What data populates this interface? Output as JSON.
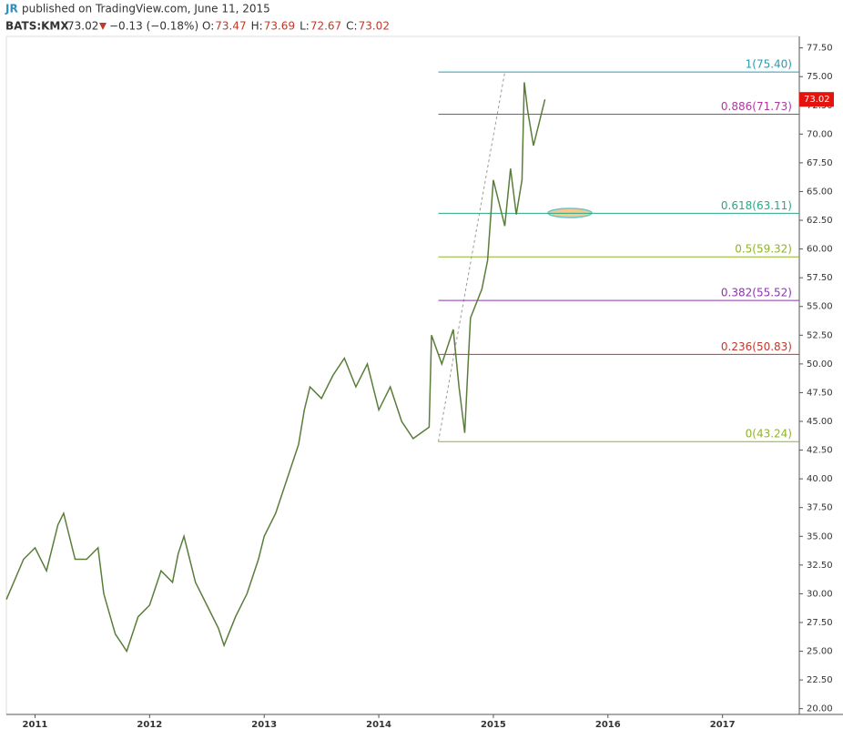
{
  "chart_data": {
    "type": "line",
    "author": "JR",
    "published": "published on TradingView.com, June 11, 2015",
    "symbol": "BATS:KMX",
    "last": 73.02,
    "change": "−0.13 (−0.18%)",
    "ohlc": [
      {
        "label": "O:",
        "value": 73.47
      },
      {
        "label": "H:",
        "value": 73.69
      },
      {
        "label": "L:",
        "value": 72.67
      },
      {
        "label": "C:",
        "value": 73.02
      }
    ],
    "series": [
      {
        "color": "#5a7d3a",
        "x": [
          2010.75,
          2010.9,
          2011.0,
          2011.1,
          2011.2,
          2011.25,
          2011.35,
          2011.45,
          2011.55,
          2011.6,
          2011.7,
          2011.8,
          2011.9,
          2012.0,
          2012.1,
          2012.2,
          2012.25,
          2012.3,
          2012.4,
          2012.5,
          2012.6,
          2012.65,
          2012.75,
          2012.85,
          2012.95,
          2013.0,
          2013.1,
          2013.2,
          2013.3,
          2013.35,
          2013.4,
          2013.5,
          2013.6,
          2013.7,
          2013.8,
          2013.9,
          2014.0,
          2014.1,
          2014.2,
          2014.3,
          2014.44,
          2014.46,
          2014.55,
          2014.65,
          2014.7,
          2014.75,
          2014.78,
          2014.8,
          2014.9,
          2014.95,
          2015.0,
          2015.05,
          2015.1,
          2015.15,
          2015.2,
          2015.25,
          2015.27,
          2015.3,
          2015.35,
          2015.4,
          2015.45
        ],
        "values": [
          29.5,
          33,
          34,
          32,
          36,
          37,
          33,
          33,
          34,
          30,
          26.5,
          25,
          28,
          29,
          32,
          31,
          33.5,
          35,
          31,
          29,
          27,
          25.5,
          28,
          30,
          33,
          35,
          37,
          40,
          43,
          46,
          48,
          47,
          49,
          50.5,
          48,
          50,
          46,
          48,
          45,
          43.5,
          44.5,
          52.5,
          50,
          53,
          48,
          44,
          50,
          54,
          56.5,
          59,
          66,
          64,
          62,
          67,
          63,
          66,
          74.5,
          72,
          69,
          71,
          73.02
        ]
      }
    ],
    "fib_levels": [
      {
        "value": 75.4,
        "label": "1(75.40)",
        "color": "#2a9bb0"
      },
      {
        "value": 71.73,
        "label": "0.886(71.73)",
        "color": "#b3389f"
      },
      {
        "value": 63.11,
        "label": "0.618(63.11)",
        "color": "#2aa884"
      },
      {
        "value": 59.32,
        "label": "0.5(59.32)",
        "color": "#8fb42a"
      },
      {
        "value": 55.52,
        "label": "0.382(55.52)",
        "color": "#8b34b0"
      },
      {
        "value": 50.83,
        "label": "0.236(50.83)",
        "color": "#c0392b"
      },
      {
        "value": 43.24,
        "label": "0(43.24)",
        "color": "#8fb42a"
      }
    ],
    "fib_x": [
      2014.52,
      2015.1
    ],
    "xlim": [
      2010.75,
      2017.67
    ],
    "xticks": [
      2011,
      2012,
      2013,
      2014,
      2015,
      2016,
      2017
    ],
    "ylim": [
      19.5,
      78.5
    ],
    "yticks": [
      {
        "value": 20,
        "label": "20.00"
      },
      {
        "value": 22.5,
        "label": "22.50"
      },
      {
        "value": 25,
        "label": "25.00"
      },
      {
        "value": 27.5,
        "label": "27.50"
      },
      {
        "value": 30,
        "label": "30.00"
      },
      {
        "value": 32.5,
        "label": "32.50"
      },
      {
        "value": 35,
        "label": "35.00"
      },
      {
        "value": 37.5,
        "label": "37.50"
      },
      {
        "value": 40,
        "label": "40.00"
      },
      {
        "value": 42.5,
        "label": "42.50"
      },
      {
        "value": 45,
        "label": "45.00"
      },
      {
        "value": 47.5,
        "label": "47.50"
      },
      {
        "value": 50,
        "label": "50.00"
      },
      {
        "value": 52.5,
        "label": "52.50"
      },
      {
        "value": 55,
        "label": "55.00"
      },
      {
        "value": 57.5,
        "label": "57.50"
      },
      {
        "value": 60,
        "label": "60.00"
      },
      {
        "value": 62.5,
        "label": "62.50"
      },
      {
        "value": 65,
        "label": "65.00"
      },
      {
        "value": 67.5,
        "label": "67.50"
      },
      {
        "value": 70,
        "label": "70.00"
      },
      {
        "value": 72.5,
        "label": "72.50"
      },
      {
        "value": 75,
        "label": "75.00"
      },
      {
        "value": 77.5,
        "label": "77.50"
      }
    ],
    "grid": false
  }
}
